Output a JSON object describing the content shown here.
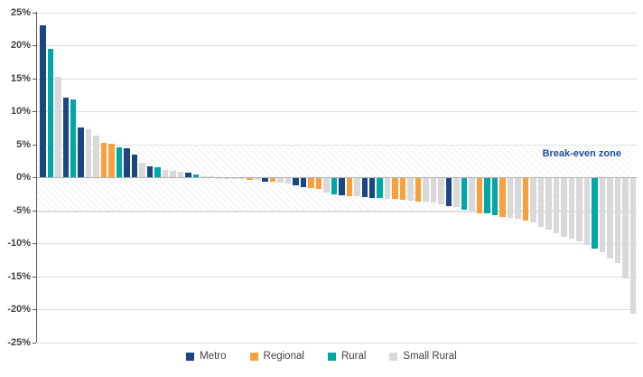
{
  "chart_data": {
    "type": "bar",
    "title": "",
    "xlabel": "",
    "ylabel": "",
    "ylim": [
      -25,
      25
    ],
    "grid": "horizontal",
    "legend_position": "bottom-center",
    "annotation": "Break-even zone",
    "breakeven_zone": {
      "from": -5,
      "to": 5
    },
    "yticks": [
      {
        "label": "25%",
        "value": 25
      },
      {
        "label": "20%",
        "value": 20
      },
      {
        "label": "15%",
        "value": 15
      },
      {
        "label": "10%",
        "value": 10
      },
      {
        "label": "5%",
        "value": 5
      },
      {
        "label": "0%",
        "value": 0
      },
      {
        "label": "-5%",
        "value": -5
      },
      {
        "label": "-10%",
        "value": -10
      },
      {
        "label": "-15%",
        "value": -15
      },
      {
        "label": "-20%",
        "value": -20
      },
      {
        "label": "-25%",
        "value": -25
      }
    ],
    "colors": {
      "Metro": "#1a4782",
      "Regional": "#f7a13c",
      "Rural": "#00a7a7",
      "Small Rural": "#d9d9d9"
    },
    "legend": [
      "Metro",
      "Regional",
      "Rural",
      "Small Rural"
    ],
    "bars": [
      {
        "category": "Metro",
        "value": 23.0
      },
      {
        "category": "Rural",
        "value": 19.4
      },
      {
        "category": "Small Rural",
        "value": 15.2
      },
      {
        "category": "Metro",
        "value": 12.1
      },
      {
        "category": "Rural",
        "value": 11.8
      },
      {
        "category": "Metro",
        "value": 7.5
      },
      {
        "category": "Small Rural",
        "value": 7.2
      },
      {
        "category": "Small Rural",
        "value": 6.3
      },
      {
        "category": "Regional",
        "value": 5.2
      },
      {
        "category": "Regional",
        "value": 5.1
      },
      {
        "category": "Rural",
        "value": 4.5
      },
      {
        "category": "Metro",
        "value": 4.4
      },
      {
        "category": "Metro",
        "value": 3.4
      },
      {
        "category": "Small Rural",
        "value": 2.2
      },
      {
        "category": "Metro",
        "value": 1.6
      },
      {
        "category": "Rural",
        "value": 1.5
      },
      {
        "category": "Small Rural",
        "value": 1.05
      },
      {
        "category": "Small Rural",
        "value": 0.9
      },
      {
        "category": "Small Rural",
        "value": 0.8
      },
      {
        "category": "Metro",
        "value": 0.75
      },
      {
        "category": "Rural",
        "value": 0.4
      },
      {
        "category": "Small Rural",
        "value": 0.2
      },
      {
        "category": "Small Rural",
        "value": 0.1
      },
      {
        "category": "Small Rural",
        "value": -0.05
      },
      {
        "category": "Small Rural",
        "value": -0.05
      },
      {
        "category": "Small Rural",
        "value": -0.1
      },
      {
        "category": "Small Rural",
        "value": -0.15
      },
      {
        "category": "Regional",
        "value": -0.2
      },
      {
        "category": "Small Rural",
        "value": -0.3
      },
      {
        "category": "Metro",
        "value": -0.5
      },
      {
        "category": "Regional",
        "value": -0.55
      },
      {
        "category": "Small Rural",
        "value": -0.7
      },
      {
        "category": "Small Rural",
        "value": -0.8
      },
      {
        "category": "Metro",
        "value": -1.1
      },
      {
        "category": "Metro",
        "value": -1.3
      },
      {
        "category": "Regional",
        "value": -1.5
      },
      {
        "category": "Regional",
        "value": -1.6
      },
      {
        "category": "Small Rural",
        "value": -2.2
      },
      {
        "category": "Rural",
        "value": -2.5
      },
      {
        "category": "Metro",
        "value": -2.6
      },
      {
        "category": "Regional",
        "value": -2.7
      },
      {
        "category": "Small Rural",
        "value": -2.75
      },
      {
        "category": "Metro",
        "value": -2.9
      },
      {
        "category": "Metro",
        "value": -2.95
      },
      {
        "category": "Rural",
        "value": -3.0
      },
      {
        "category": "Small Rural",
        "value": -3.1
      },
      {
        "category": "Regional",
        "value": -3.2
      },
      {
        "category": "Regional",
        "value": -3.3
      },
      {
        "category": "Small Rural",
        "value": -3.4
      },
      {
        "category": "Regional",
        "value": -3.5
      },
      {
        "category": "Small Rural",
        "value": -3.6
      },
      {
        "category": "Small Rural",
        "value": -3.7
      },
      {
        "category": "Small Rural",
        "value": -4.0
      },
      {
        "category": "Metro",
        "value": -4.25
      },
      {
        "category": "Small Rural",
        "value": -4.4
      },
      {
        "category": "Rural",
        "value": -4.8
      },
      {
        "category": "Small Rural",
        "value": -5.1
      },
      {
        "category": "Regional",
        "value": -5.3
      },
      {
        "category": "Rural",
        "value": -5.4
      },
      {
        "category": "Rural",
        "value": -5.6
      },
      {
        "category": "Regional",
        "value": -5.9
      },
      {
        "category": "Small Rural",
        "value": -6.0
      },
      {
        "category": "Small Rural",
        "value": -6.2
      },
      {
        "category": "Regional",
        "value": -6.4
      },
      {
        "category": "Small Rural",
        "value": -6.7
      },
      {
        "category": "Small Rural",
        "value": -7.4
      },
      {
        "category": "Small Rural",
        "value": -7.8
      },
      {
        "category": "Small Rural",
        "value": -8.35
      },
      {
        "category": "Small Rural",
        "value": -8.9
      },
      {
        "category": "Small Rural",
        "value": -9.2
      },
      {
        "category": "Small Rural",
        "value": -9.6
      },
      {
        "category": "Small Rural",
        "value": -10.1
      },
      {
        "category": "Rural",
        "value": -10.7
      },
      {
        "category": "Small Rural",
        "value": -11.2
      },
      {
        "category": "Small Rural",
        "value": -12.2
      },
      {
        "category": "Small Rural",
        "value": -12.9
      },
      {
        "category": "Small Rural",
        "value": -15.2
      },
      {
        "category": "Small Rural",
        "value": -20.5
      }
    ]
  }
}
